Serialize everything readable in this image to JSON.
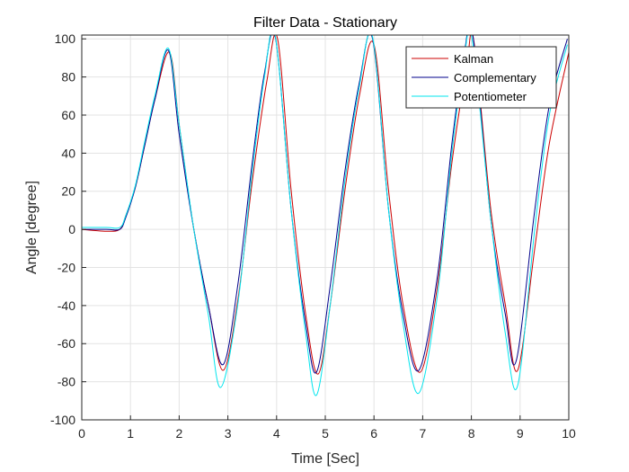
{
  "chart_data": {
    "type": "line",
    "title": "Filter Data - Stationary",
    "xlabel": "Time [Sec]",
    "ylabel": "Angle [degree]",
    "xlim": [
      0,
      10
    ],
    "ylim": [
      -100,
      102
    ],
    "xticks": [
      0,
      1,
      2,
      3,
      4,
      5,
      6,
      7,
      8,
      9,
      10
    ],
    "yticks": [
      -100,
      -80,
      -60,
      -40,
      -20,
      0,
      20,
      40,
      60,
      80,
      100
    ],
    "grid": true,
    "legend_position": "top-right",
    "series": [
      {
        "name": "Kalman",
        "color": "#cc0000",
        "x": [
          0,
          0.5,
          0.78,
          0.9,
          1.1,
          1.3,
          1.5,
          1.8,
          2.0,
          2.3,
          2.6,
          2.9,
          3.2,
          3.5,
          3.8,
          4.02,
          4.3,
          4.6,
          4.85,
          5.1,
          5.4,
          5.7,
          6.0,
          6.3,
          6.6,
          6.95,
          7.3,
          7.6,
          7.9,
          8.05,
          8.4,
          8.7,
          8.95,
          9.3,
          9.6,
          10.0
        ],
        "y": [
          0,
          -1,
          0,
          7,
          22,
          45,
          68,
          93,
          55,
          0,
          -40,
          -74,
          -38,
          25,
          78,
          100,
          20,
          -45,
          -76,
          -40,
          20,
          70,
          97,
          20,
          -40,
          -75,
          -30,
          35,
          85,
          99,
          10,
          -40,
          -74,
          -10,
          45,
          93
        ]
      },
      {
        "name": "Complementary",
        "color": "#00008b",
        "x": [
          0,
          0.5,
          0.78,
          0.9,
          1.1,
          1.3,
          1.5,
          1.78,
          2.0,
          2.3,
          2.6,
          2.9,
          3.2,
          3.5,
          3.75,
          3.98,
          4.3,
          4.6,
          4.82,
          5.1,
          5.4,
          5.7,
          5.97,
          6.3,
          6.6,
          6.92,
          7.3,
          7.6,
          7.85,
          8.03,
          8.4,
          8.7,
          8.92,
          9.3,
          9.6,
          9.97
        ],
        "y": [
          0,
          0,
          0,
          6,
          22,
          45,
          68,
          94,
          50,
          0,
          -40,
          -71,
          -30,
          35,
          82,
          100,
          10,
          -50,
          -75,
          -30,
          30,
          77,
          100,
          10,
          -45,
          -74,
          -25,
          45,
          92,
          102,
          5,
          -45,
          -69,
          10,
          65,
          100
        ]
      },
      {
        "name": "Potentiometer",
        "color": "#00e5ee",
        "x": [
          0,
          0.5,
          0.78,
          0.9,
          1.1,
          1.3,
          1.5,
          1.78,
          2.0,
          2.3,
          2.6,
          2.85,
          3.2,
          3.5,
          3.75,
          3.97,
          4.3,
          4.6,
          4.82,
          5.1,
          5.4,
          5.7,
          5.97,
          6.3,
          6.6,
          6.92,
          7.3,
          7.6,
          7.85,
          8.02,
          8.4,
          8.7,
          8.95,
          9.3,
          9.6,
          9.97
        ],
        "y": [
          1,
          1,
          1,
          7,
          23,
          47,
          70,
          95,
          55,
          0,
          -45,
          -83,
          -40,
          30,
          80,
          102,
          10,
          -55,
          -87,
          -40,
          25,
          75,
          101,
          10,
          -50,
          -86,
          -35,
          40,
          90,
          99,
          5,
          -55,
          -82,
          0,
          60,
          97
        ]
      }
    ]
  }
}
